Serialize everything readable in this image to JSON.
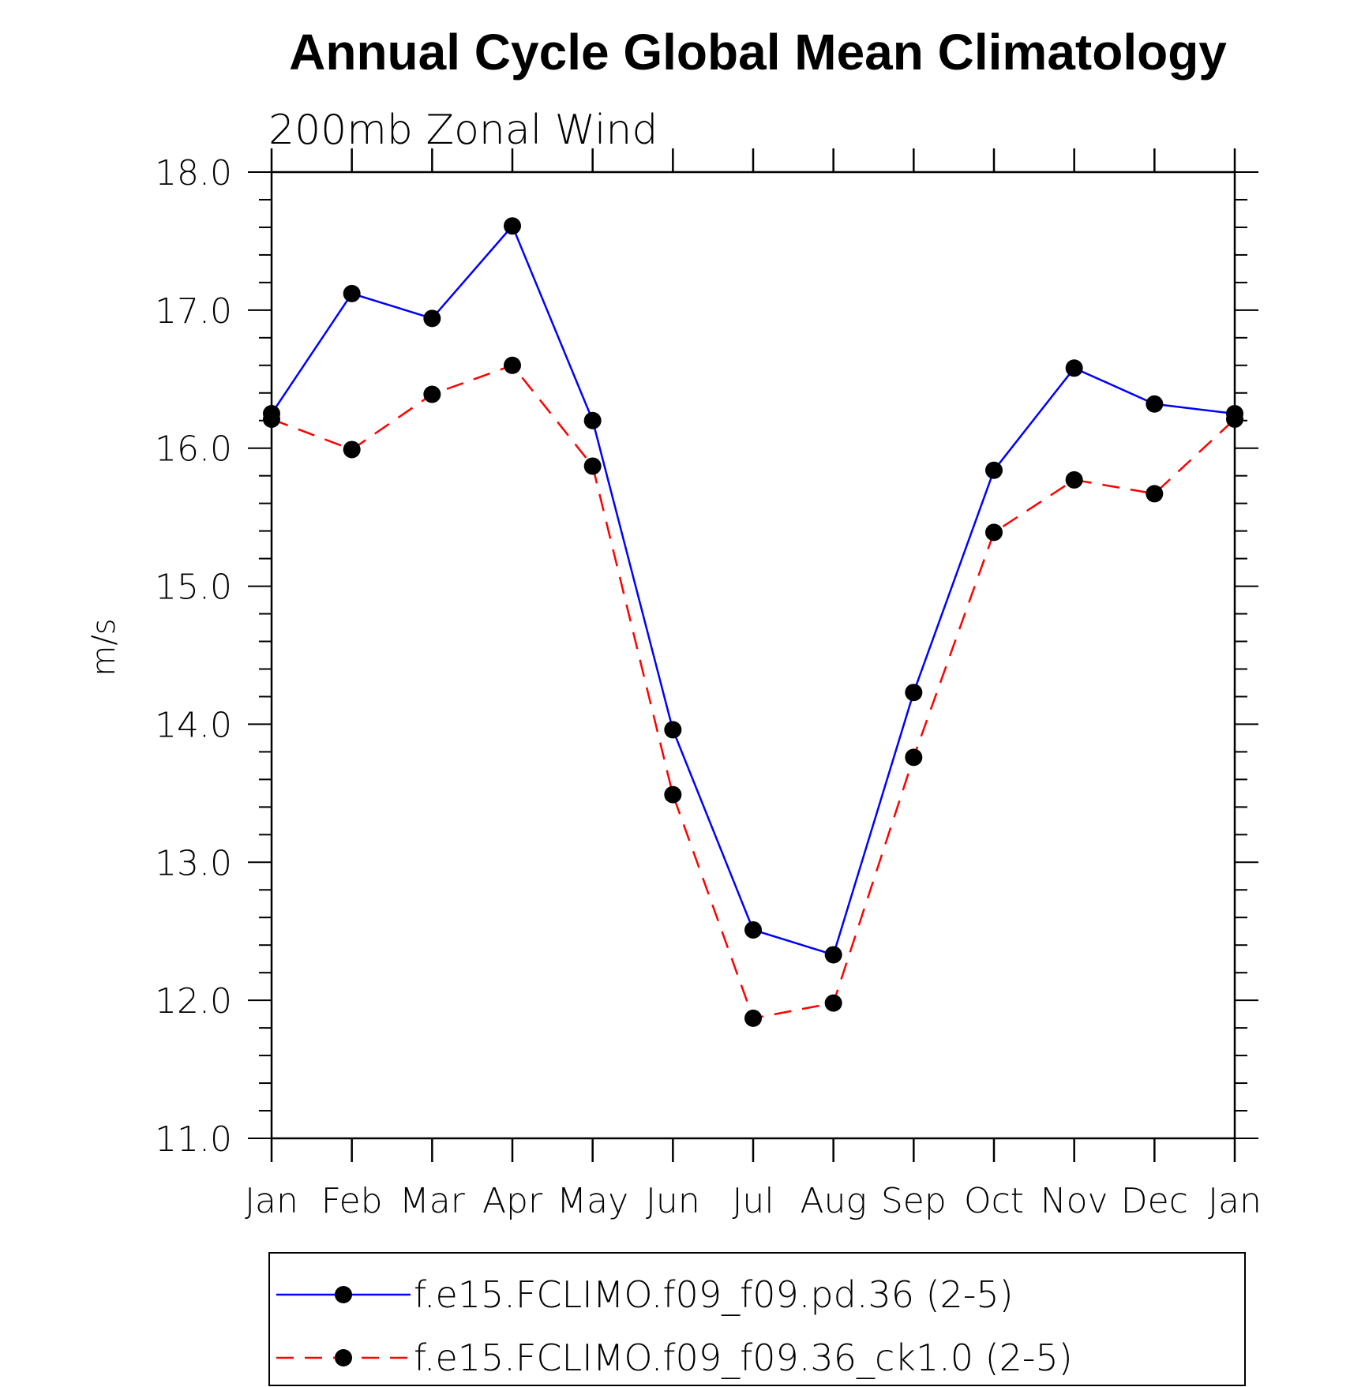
{
  "chart_data": {
    "type": "line",
    "title": "Annual Cycle Global Mean Climatology",
    "subtitle": "200mb Zonal Wind",
    "xlabel": "",
    "ylabel": "m/s",
    "categories": [
      "Jan",
      "Feb",
      "Mar",
      "Apr",
      "May",
      "Jun",
      "Jul",
      "Aug",
      "Sep",
      "Oct",
      "Nov",
      "Dec",
      "Jan"
    ],
    "ylim": [
      11.0,
      18.0
    ],
    "yticks": [
      "11.0",
      "12.0",
      "13.0",
      "14.0",
      "15.0",
      "16.0",
      "17.0",
      "18.0"
    ],
    "grid": false,
    "legend_position": "bottom",
    "series": [
      {
        "name": "f.e15.FCLIMO.f09_f09.pd.36 (2-5)",
        "color": "#0000ff",
        "line_style": "solid",
        "marker": "filled-circle",
        "values": [
          16.25,
          17.12,
          16.94,
          17.61,
          16.2,
          13.96,
          12.51,
          12.33,
          14.23,
          15.84,
          16.58,
          16.32,
          16.25
        ]
      },
      {
        "name": "f.e15.FCLIMO.f09_f09.36_ck1.0 (2-5)",
        "color": "#ff0000",
        "line_style": "dashed",
        "marker": "filled-circle",
        "values": [
          16.21,
          15.99,
          16.39,
          16.6,
          15.87,
          13.49,
          11.87,
          11.98,
          13.76,
          15.39,
          15.77,
          15.67,
          16.21
        ]
      }
    ]
  }
}
